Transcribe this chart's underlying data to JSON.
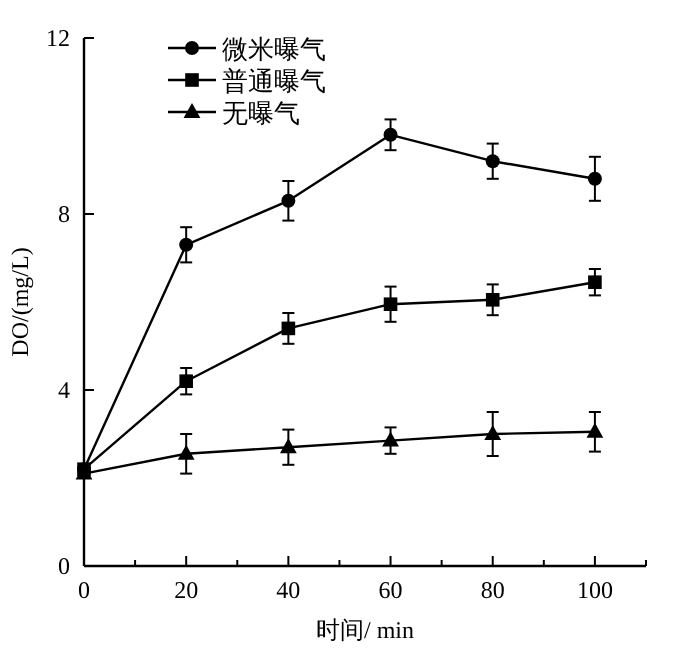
{
  "chart_data": {
    "type": "line",
    "xlabel": "时间/ min",
    "ylabel": "DO/(mg/L)",
    "x": [
      0,
      20,
      40,
      60,
      80,
      100
    ],
    "xlim": [
      0,
      110
    ],
    "ylim": [
      0,
      12
    ],
    "xticks": [
      0,
      {
        "value": 10,
        "label": null
      },
      20,
      {
        "value": 30,
        "label": null
      },
      40,
      {
        "value": 50,
        "label": null
      },
      60,
      {
        "value": 70,
        "label": null
      },
      80,
      {
        "value": 90,
        "label": null
      },
      100,
      {
        "value": 110,
        "label": null
      }
    ],
    "yticks": [
      0,
      4,
      8,
      12
    ],
    "legend": "top left",
    "grid": false,
    "line_style": "solid",
    "series": [
      {
        "name": "微米曝气",
        "color": "#000000",
        "marker": "circle",
        "values": [
          2.2,
          7.3,
          8.3,
          9.8,
          9.2,
          8.8
        ],
        "errors": [
          0.1,
          0.4,
          0.45,
          0.35,
          0.4,
          0.5
        ]
      },
      {
        "name": "普通曝气",
        "color": "#000000",
        "marker": "square",
        "values": [
          2.2,
          4.2,
          5.4,
          5.95,
          6.05,
          6.45
        ],
        "errors": [
          0.1,
          0.3,
          0.35,
          0.4,
          0.35,
          0.3
        ]
      },
      {
        "name": "无曝气",
        "color": "#000000",
        "marker": "triangle",
        "values": [
          2.1,
          2.55,
          2.7,
          2.85,
          3.0,
          3.05
        ],
        "errors": [
          0.1,
          0.45,
          0.4,
          0.3,
          0.5,
          0.45
        ]
      }
    ]
  }
}
